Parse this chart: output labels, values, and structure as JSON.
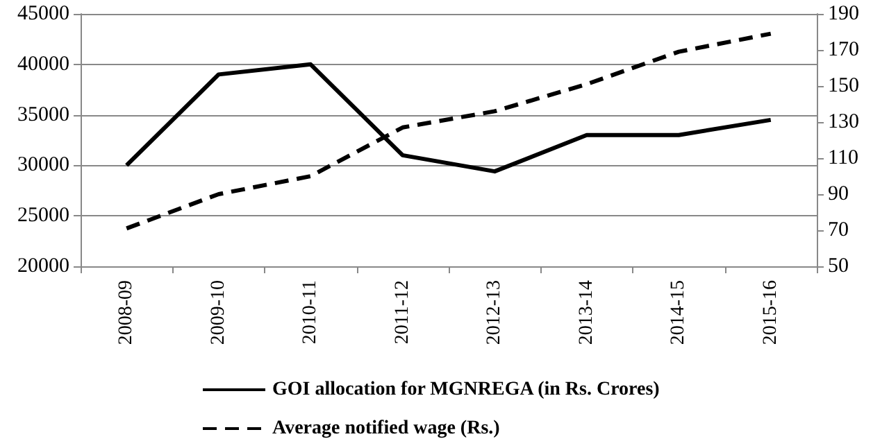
{
  "chart_data": {
    "type": "line",
    "categories": [
      "2008-09",
      "2009-10",
      "2010-11",
      "2011-12",
      "2012-13",
      "2013-14",
      "2014-15",
      "2015-16"
    ],
    "series": [
      {
        "name": "GOI allocation for MGNREGA (in Rs. Crores)",
        "color": "#000000",
        "line_style": "solid",
        "values": [
          30000,
          39000,
          40000,
          31000,
          29400,
          33000,
          33000,
          34500
        ]
      },
      {
        "name": "Average notified wage (Rs.)",
        "color": "#000000",
        "line_style": "dashed",
        "axis": "y2",
        "values": [
          71,
          90,
          100,
          127,
          136,
          151,
          169,
          179
        ]
      }
    ],
    "ylim": [
      20000,
      45000
    ],
    "yticks": [
      20000,
      25000,
      30000,
      35000,
      40000,
      45000
    ],
    "y2lim": [
      50,
      190
    ],
    "y2ticks": [
      50,
      70,
      90,
      110,
      130,
      150,
      170,
      190
    ],
    "grid": "y",
    "legend": "bottom",
    "marker": "none"
  }
}
